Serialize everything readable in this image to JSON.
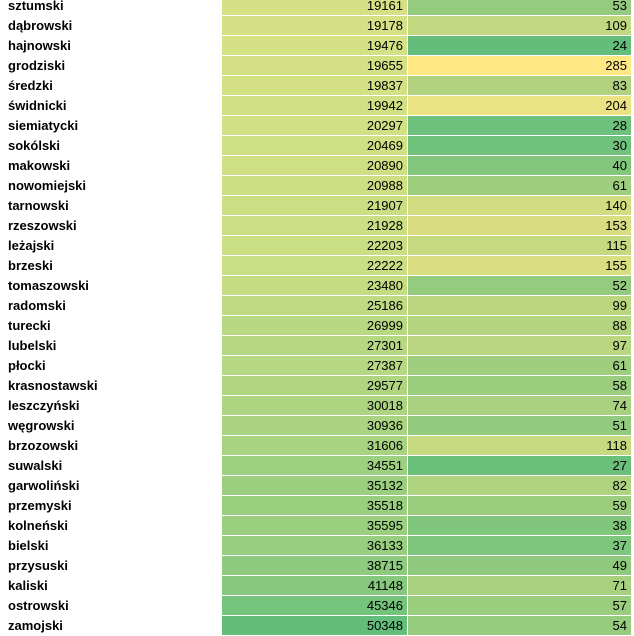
{
  "table": {
    "columns": [
      {
        "color_scale": null
      },
      {
        "color_scale": [
          "#d5e184",
          "#63be7b"
        ],
        "scale": "linear"
      },
      {
        "color_scale": [
          "#63be7b",
          "#ffe884"
        ],
        "scale": "log"
      }
    ],
    "rows": [
      [
        "sztumski",
        19161,
        53
      ],
      [
        "dąbrowski",
        19178,
        109
      ],
      [
        "hajnowski",
        19476,
        24
      ],
      [
        "grodziski",
        19655,
        285
      ],
      [
        "średzki",
        19837,
        83
      ],
      [
        "świdnicki",
        19942,
        204
      ],
      [
        "siemiatycki",
        20297,
        28
      ],
      [
        "sokólski",
        20469,
        30
      ],
      [
        "makowski",
        20890,
        40
      ],
      [
        "nowomiejski",
        20988,
        61
      ],
      [
        "tarnowski",
        21907,
        140
      ],
      [
        "rzeszowski",
        21928,
        153
      ],
      [
        "leżajski",
        22203,
        115
      ],
      [
        "brzeski",
        22222,
        155
      ],
      [
        "tomaszowski",
        23480,
        52
      ],
      [
        "radomski",
        25186,
        99
      ],
      [
        "turecki",
        26999,
        88
      ],
      [
        "lubelski",
        27301,
        97
      ],
      [
        "płocki",
        27387,
        61
      ],
      [
        "krasnostawski",
        29577,
        58
      ],
      [
        "leszczyński",
        30018,
        74
      ],
      [
        "węgrowski",
        30936,
        51
      ],
      [
        "brzozowski",
        31606,
        118
      ],
      [
        "suwalski",
        34551,
        27
      ],
      [
        "garwoliński",
        35132,
        82
      ],
      [
        "przemyski",
        35518,
        59
      ],
      [
        "kolneński",
        35595,
        38
      ],
      [
        "bielski",
        36133,
        37
      ],
      [
        "przysuski",
        38715,
        49
      ],
      [
        "kaliski",
        41148,
        71
      ],
      [
        "ostrowski",
        45346,
        57
      ],
      [
        "zamojski",
        50348,
        54
      ]
    ]
  }
}
